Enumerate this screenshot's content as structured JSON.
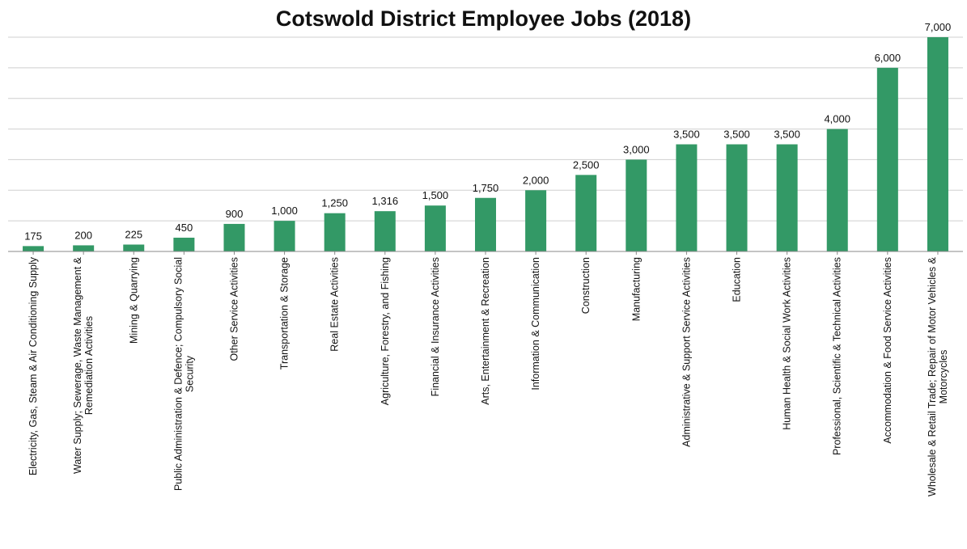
{
  "chart_data": {
    "type": "bar",
    "title": "Cotswold District Employee Jobs (2018)",
    "xlabel": "",
    "ylabel": "",
    "ylim": [
      0,
      7000
    ],
    "grid": true,
    "legend": "none",
    "colors": {
      "bar": "#339966",
      "grid": "#cfcfcf"
    },
    "categories": [
      "Electricity, Gas, Steam & Air Conditioning Supply",
      "Water Supply; Sewerage, Waste Management & Remediation Activities",
      "Mining & Quarrying",
      "Public Administration & Defence; Compulsory Social Security",
      "Other Service Activities",
      "Transportation & Storage",
      "Real Estate Activities",
      "Agriculture, Forestry, and Fishing",
      "Financial & Insurance Activities",
      "Arts, Entertainment & Recreation",
      "Information & Communication",
      "Construction",
      "Manufacturing",
      "Administrative & Support Service Activities",
      "Education",
      "Human Health & Social Work Activities",
      "Professional, Scientific & Technical Activities",
      "Accommodation & Food Service Activities",
      "Wholesale & Retail Trade; Repair of Motor Vehicles & Motorcycles"
    ],
    "category_lines": [
      [
        "Electricity, Gas, Steam & Air Conditioning Supply"
      ],
      [
        "Water Supply; Sewerage, Waste Management &",
        "Remediation Activities"
      ],
      [
        "Mining & Quarrying"
      ],
      [
        "Public Administration & Defence; Compulsory Social",
        "Security"
      ],
      [
        "Other Service Activities"
      ],
      [
        "Transportation & Storage"
      ],
      [
        "Real Estate Activities"
      ],
      [
        "Agriculture, Forestry, and Fishing"
      ],
      [
        "Financial & Insurance Activities"
      ],
      [
        "Arts, Entertainment & Recreation"
      ],
      [
        "Information & Communication"
      ],
      [
        "Construction"
      ],
      [
        "Manufacturing"
      ],
      [
        "Administrative & Support Service Activities"
      ],
      [
        "Education"
      ],
      [
        "Human Health & Social Work Activities"
      ],
      [
        "Professional, Scientific & Technical Activities"
      ],
      [
        "Accommodation & Food Service Activities"
      ],
      [
        "Wholesale & Retail Trade; Repair of Motor Vehicles &",
        "Motorcycles"
      ]
    ],
    "values": [
      175,
      200,
      225,
      450,
      900,
      1000,
      1250,
      1316,
      1500,
      1750,
      2000,
      2500,
      3000,
      3500,
      3500,
      3500,
      4000,
      6000,
      7000
    ],
    "value_labels": [
      "175",
      "200",
      "225",
      "450",
      "900",
      "1,000",
      "1,250",
      "1,316",
      "1,500",
      "1,750",
      "2,000",
      "2,500",
      "3,000",
      "3,500",
      "3,500",
      "3,500",
      "4,000",
      "6,000",
      "7,000"
    ]
  }
}
